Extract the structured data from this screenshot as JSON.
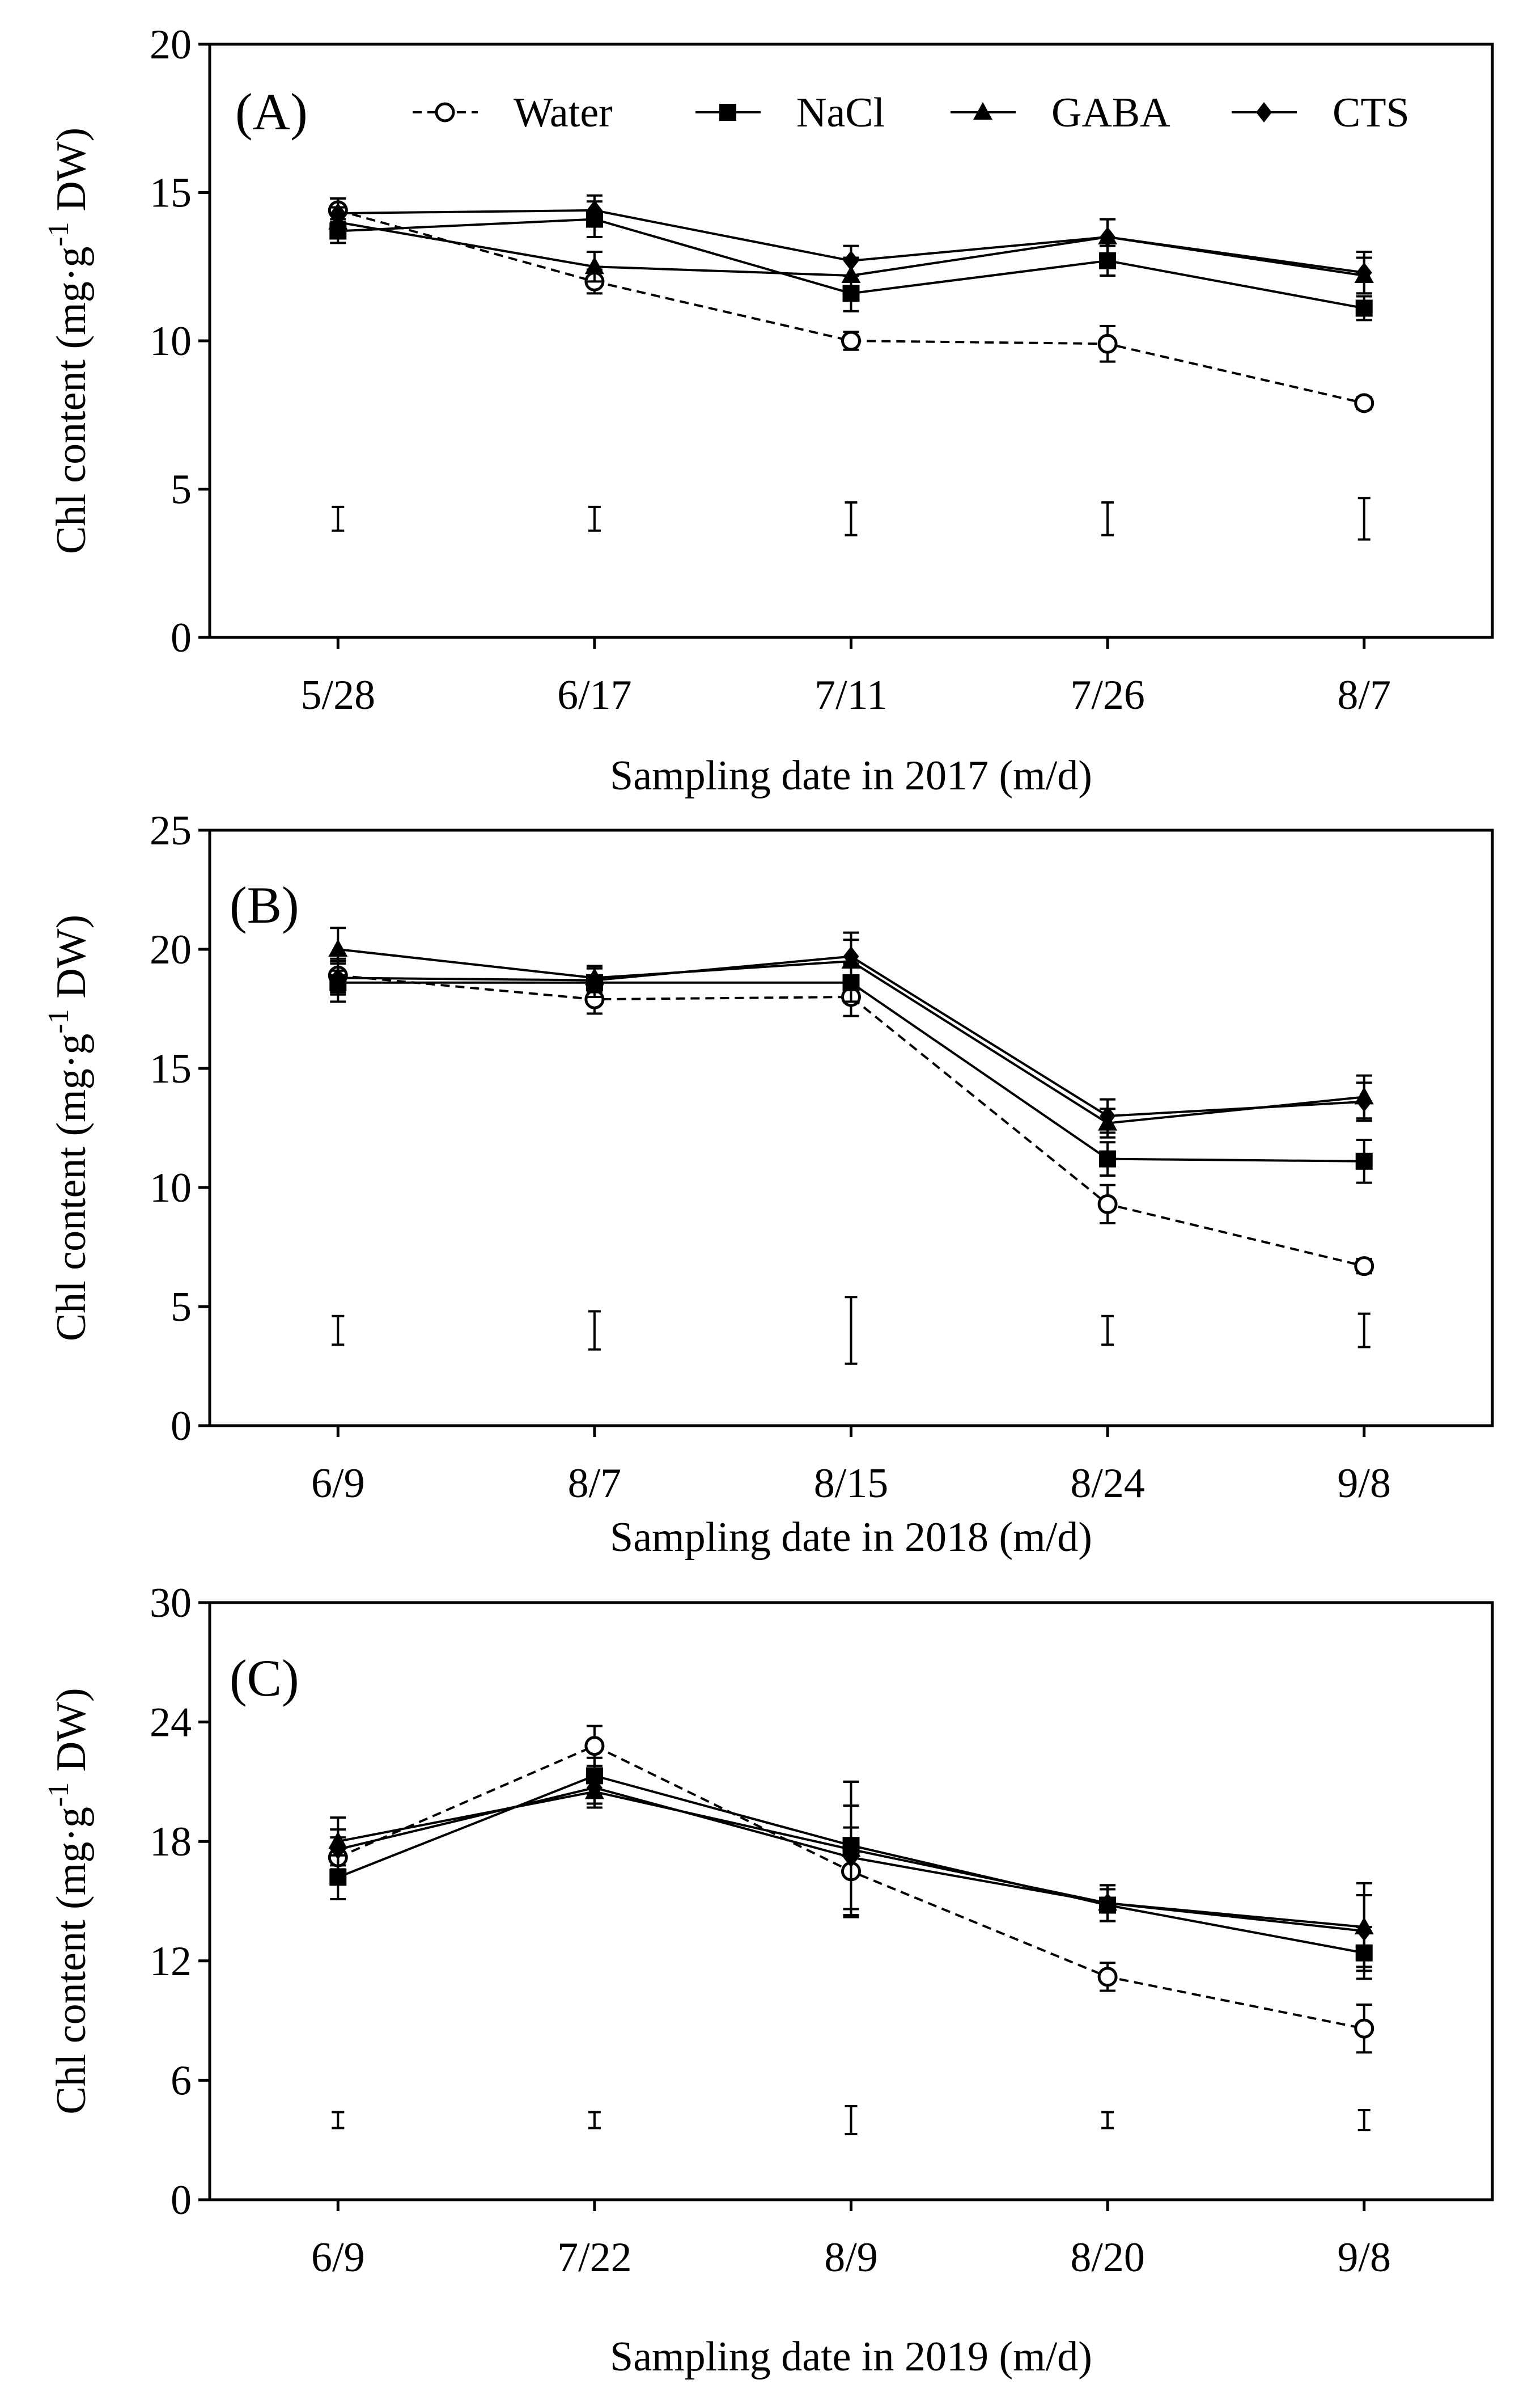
{
  "figure": {
    "background": "#ffffff",
    "color": "#000000"
  },
  "legend": [
    {
      "name": "Water",
      "marker": "open-circle-icon",
      "line": "dashed"
    },
    {
      "name": "NaCl",
      "marker": "filled-square-icon",
      "line": "solid"
    },
    {
      "name": "GABA",
      "marker": "filled-triangle-icon",
      "line": "solid"
    },
    {
      "name": "CTS",
      "marker": "filled-diamond-icon",
      "line": "solid"
    }
  ],
  "chart_data": [
    {
      "type": "line",
      "panel": "(A)",
      "xlabel": "Sampling date in 2017 (m/d)",
      "ylabel": "Chl content (mg·g",
      "ylabel_sup": "-1",
      "ylabel_tail": " DW)",
      "categories": [
        "5/28",
        "6/17",
        "7/11",
        "7/26",
        "8/7"
      ],
      "ylim": [
        0,
        20
      ],
      "yticks": [
        "0",
        "5",
        "10",
        "15",
        "20"
      ],
      "series": [
        {
          "name": "Water",
          "values": [
            14.4,
            12.0,
            10.0,
            9.9,
            7.9
          ],
          "errors": [
            0.4,
            0.4,
            0.3,
            0.6,
            0.2
          ]
        },
        {
          "name": "NaCl",
          "values": [
            13.7,
            14.1,
            11.6,
            12.7,
            11.1
          ],
          "errors": [
            0.4,
            0.6,
            0.6,
            0.5,
            0.4
          ]
        },
        {
          "name": "GABA",
          "values": [
            14.0,
            12.5,
            12.2,
            13.5,
            12.2
          ],
          "errors": [
            0.5,
            0.5,
            0.6,
            0.6,
            0.6
          ]
        },
        {
          "name": "CTS",
          "values": [
            14.3,
            14.4,
            12.7,
            13.5,
            12.3
          ],
          "errors": [
            0.5,
            0.5,
            0.5,
            0.6,
            0.7
          ]
        }
      ],
      "lsd": {
        "values": [
          4.0,
          4.0,
          4.0,
          4.0,
          4.0
        ],
        "half_ranges": [
          0.4,
          0.4,
          0.55,
          0.55,
          0.7
        ]
      }
    },
    {
      "type": "line",
      "panel": "(B)",
      "xlabel": "Sampling date in 2018 (m/d)",
      "ylabel": "Chl content (mg·g",
      "ylabel_sup": "-1",
      "ylabel_tail": " DW)",
      "categories": [
        "6/9",
        "8/7",
        "8/15",
        "8/24",
        "9/8"
      ],
      "ylim": [
        0,
        25
      ],
      "yticks": [
        "0",
        "5",
        "10",
        "15",
        "20",
        "25"
      ],
      "series": [
        {
          "name": "Water",
          "values": [
            18.9,
            17.9,
            18.0,
            9.3,
            6.7
          ],
          "errors": [
            0.7,
            0.6,
            0.8,
            0.8,
            0.3
          ]
        },
        {
          "name": "NaCl",
          "values": [
            18.6,
            18.6,
            18.6,
            11.2,
            11.1
          ],
          "errors": [
            0.8,
            0.6,
            0.8,
            0.7,
            0.9
          ]
        },
        {
          "name": "GABA",
          "values": [
            20.0,
            18.8,
            19.5,
            12.7,
            13.8
          ],
          "errors": [
            0.9,
            0.5,
            0.9,
            0.6,
            0.9
          ]
        },
        {
          "name": "CTS",
          "values": [
            18.8,
            18.7,
            19.7,
            13.0,
            13.6
          ],
          "errors": [
            0.7,
            0.5,
            1.0,
            0.7,
            0.8
          ]
        }
      ],
      "lsd": {
        "values": [
          4.0,
          4.0,
          4.0,
          4.0,
          4.0
        ],
        "half_ranges": [
          0.6,
          0.8,
          1.4,
          0.6,
          0.7
        ]
      }
    },
    {
      "type": "line",
      "panel": "(C)",
      "xlabel": "Sampling date in 2019 (m/d)",
      "ylabel": "Chl content (mg·g",
      "ylabel_sup": "-1",
      "ylabel_tail": " DW)",
      "categories": [
        "6/9",
        "7/22",
        "8/9",
        "8/20",
        "9/8"
      ],
      "ylim": [
        0,
        30
      ],
      "yticks": [
        "0",
        "6",
        "12",
        "18",
        "24",
        "30"
      ],
      "series": [
        {
          "name": "Water",
          "values": [
            17.2,
            22.8,
            16.5,
            11.2,
            8.6
          ],
          "errors": [
            1.0,
            1.0,
            2.2,
            0.7,
            1.2
          ]
        },
        {
          "name": "NaCl",
          "values": [
            16.2,
            21.3,
            17.8,
            14.8,
            12.4
          ],
          "errors": [
            1.1,
            0.9,
            3.2,
            0.8,
            1.3
          ]
        },
        {
          "name": "GABA",
          "values": [
            18.0,
            20.5,
            17.6,
            14.9,
            13.7
          ],
          "errors": [
            1.2,
            0.8,
            3.4,
            0.9,
            2.2
          ]
        },
        {
          "name": "CTS",
          "values": [
            17.6,
            20.7,
            17.2,
            14.9,
            13.5
          ],
          "errors": [
            1.0,
            0.8,
            2.6,
            0.9,
            1.8
          ]
        }
      ],
      "lsd": {
        "values": [
          4.0,
          4.0,
          4.0,
          4.0,
          4.0
        ],
        "half_ranges": [
          0.4,
          0.4,
          0.7,
          0.4,
          0.5
        ]
      }
    }
  ]
}
